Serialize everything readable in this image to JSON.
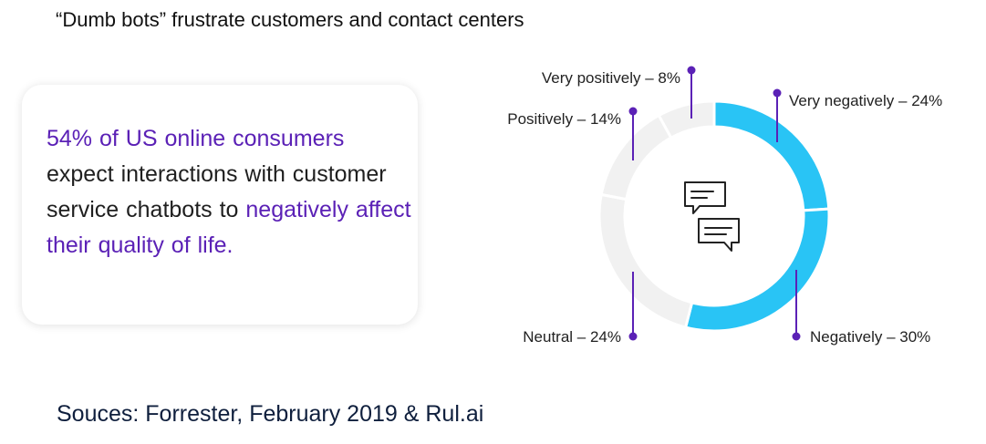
{
  "title": "“Dumb bots” frustrate customers and contact centers",
  "card": {
    "highlight_1": "54% of US online consumers",
    "text_1": " expect interactions with customer service chatbots to ",
    "highlight_2": "negatively affect their quality of life."
  },
  "source": "Souces: Forrester, February 2019 & Rul.ai",
  "center_icon": "chat-bubbles-icon",
  "colors": {
    "highlight_text": "#5b21b6",
    "negative_slice": "#29c4f5",
    "other_slice": "#f1f1f1",
    "leader_line": "#5b21b6"
  },
  "chart_data": {
    "type": "pie",
    "variant": "donut",
    "title": "",
    "slices": [
      {
        "label": "Very negatively – 24%",
        "category": "Very negatively",
        "value": 24,
        "color": "#29c4f5"
      },
      {
        "label": "Negatively – 30%",
        "category": "Negatively",
        "value": 30,
        "color": "#29c4f5"
      },
      {
        "label": "Neutral – 24%",
        "category": "Neutral",
        "value": 24,
        "color": "#f1f1f1"
      },
      {
        "label": "Positively – 14%",
        "category": "Positively",
        "value": 14,
        "color": "#f1f1f1"
      },
      {
        "label": "Very positively – 8%",
        "category": "Very positively",
        "value": 8,
        "color": "#f1f1f1"
      }
    ]
  }
}
